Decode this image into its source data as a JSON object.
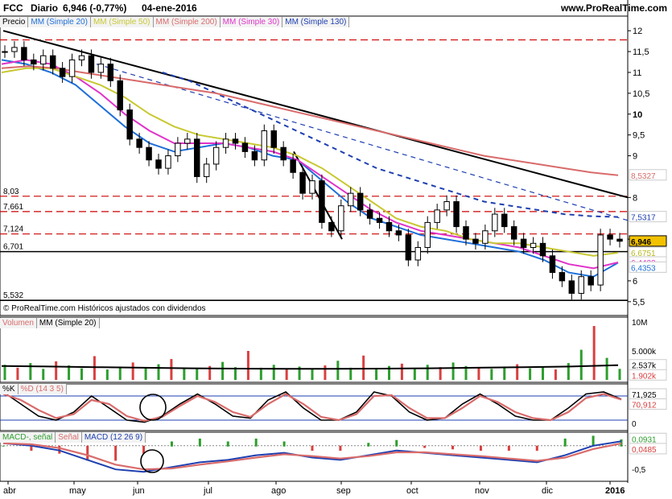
{
  "header": {
    "ticker": "FCC",
    "period": "Diario",
    "quote": "6,946 (-0,77%)",
    "date": "04-ene-2016",
    "site": "www.ProRealTime.com"
  },
  "price_legend": [
    {
      "label": "Precio",
      "color": "#000000"
    },
    {
      "label": "MM (Simple 20)",
      "color": "#1e6fd9"
    },
    {
      "label": "MM (Simple 50)",
      "color": "#c8c832"
    },
    {
      "label": "MM (Simple 200)",
      "color": "#d96b6b"
    },
    {
      "label": "MM (Simple 30)",
      "color": "#e033c9"
    },
    {
      "label": "MM (Simple 130)",
      "color": "#1e3fb0"
    }
  ],
  "copyright": "© ProRealTime.com  Históricos ajustados con dividendos",
  "volume_legend": [
    {
      "label": "Volumen",
      "color": "#d96b6b"
    },
    {
      "label": "MM (Simple 20)",
      "color": "#000000"
    }
  ],
  "stoch_legend": [
    {
      "label": "%K",
      "color": "#000000"
    },
    {
      "label": "%D (14 3 5)",
      "color": "#d96b6b"
    }
  ],
  "macd_legend": [
    {
      "label": "MACD-, señal",
      "color": "#2e9e2e"
    },
    {
      "label": "Señal",
      "color": "#d96b6b"
    },
    {
      "label": "MACD (12 26 9)",
      "color": "#1e3fb0"
    }
  ],
  "price_axis_ticks": [
    "12",
    "11,5",
    "11",
    "10,5",
    "10",
    "9,5",
    "9",
    "8",
    "7",
    "6",
    "5,5"
  ],
  "level_labels": [
    "8,03",
    "7,661",
    "7,124",
    "6,701",
    "5,532"
  ],
  "price_right_labels": [
    {
      "text": "8,5327",
      "color": "#d96b6b"
    },
    {
      "text": "7,5317",
      "color": "#1e3fb0"
    },
    {
      "text": "6,946",
      "color": "#000000"
    },
    {
      "text": "6,6751",
      "color": "#b8b820"
    },
    {
      "text": "6,4423",
      "color": "#e033c9"
    },
    {
      "text": "6,4353",
      "color": "#1e6fd9"
    }
  ],
  "volume_axis": [
    "10M",
    "5.000k",
    "2.537k",
    "1.902k"
  ],
  "stoch_axis": [
    "71,925",
    "70,912",
    "0"
  ],
  "macd_axis": [
    "0,0931",
    "0,0485",
    "-0,5"
  ],
  "x_labels": [
    "abr",
    "may",
    "jun",
    "jul",
    "ago",
    "sep",
    "oct",
    "nov",
    "dic",
    "2016"
  ],
  "colors": {
    "up": "#2e9e2e",
    "down": "#d94040",
    "ma20": "#1e6fd9",
    "ma50": "#c8c832",
    "ma200": "#d96b6b",
    "ma30": "#e033c9",
    "ma130": "#1e3fb0",
    "level": "#cc0000"
  },
  "chart_data": [
    {
      "type": "line",
      "title": "FCC Diario",
      "ylim": [
        5.4,
        12.1
      ],
      "x_ticks": [
        "abr",
        "may",
        "jun",
        "jul",
        "ago",
        "sep",
        "oct",
        "nov",
        "dic",
        "2016"
      ],
      "price_close": [
        11.5,
        11.6,
        11.3,
        11.2,
        11.4,
        11.1,
        10.9,
        11.3,
        11.4,
        11.0,
        11.2,
        10.8,
        10.1,
        9.4,
        9.2,
        8.9,
        8.7,
        9.0,
        9.3,
        9.4,
        8.5,
        8.8,
        9.2,
        9.4,
        9.3,
        9.1,
        8.9,
        9.6,
        9.2,
        8.9,
        8.6,
        8.1,
        8.4,
        7.4,
        7.2,
        7.8,
        8.1,
        7.7,
        7.5,
        7.4,
        7.2,
        7.1,
        6.5,
        6.8,
        7.4,
        7.7,
        7.9,
        7.3,
        7.0,
        6.9,
        7.2,
        7.6,
        7.3,
        7.0,
        6.8,
        6.9,
        6.6,
        6.2,
        6.0,
        5.7,
        6.1,
        5.9,
        7.1,
        7.0,
        6.95
      ],
      "horizontal_levels": [
        11.78,
        8.03,
        7.661,
        7.124,
        6.701,
        5.532
      ],
      "series": [
        {
          "name": "MM (Simple 20)",
          "values": [
            11.3,
            11.2,
            11.0,
            10.7,
            10.2,
            9.7,
            9.3,
            9.1,
            9.2,
            9.3,
            9.2,
            9.0,
            8.9,
            8.4,
            7.9,
            7.5,
            7.3,
            7.1,
            7.0,
            6.9,
            6.8,
            6.7,
            6.5,
            6.2,
            6.1,
            6.4353
          ]
        },
        {
          "name": "MM (Simple 30)",
          "values": [
            11.2,
            11.3,
            11.2,
            10.9,
            10.5,
            10.0,
            9.6,
            9.3,
            9.3,
            9.3,
            9.2,
            9.1,
            8.9,
            8.5,
            8.1,
            7.7,
            7.4,
            7.2,
            7.1,
            7.0,
            6.9,
            6.8,
            6.6,
            6.4,
            6.3,
            6.4423
          ]
        },
        {
          "name": "MM (Simple 50)",
          "values": [
            11.0,
            11.1,
            11.1,
            10.9,
            10.7,
            10.4,
            10.0,
            9.7,
            9.5,
            9.4,
            9.3,
            9.2,
            9.0,
            8.7,
            8.3,
            7.9,
            7.5,
            7.3,
            7.2,
            7.0,
            6.9,
            6.9,
            6.8,
            6.7,
            6.6,
            6.6751
          ]
        },
        {
          "name": "MM (Simple 130)",
          "values": [
            null,
            null,
            null,
            null,
            null,
            null,
            11.0,
            10.8,
            10.5,
            10.2,
            9.9,
            9.6,
            9.3,
            9.0,
            8.7,
            8.5,
            8.3,
            8.1,
            7.9,
            7.8,
            7.7,
            7.6,
            7.55,
            7.5317
          ]
        },
        {
          "name": "MM (Simple 200)",
          "values": [
            11.1,
            11.15,
            11.1,
            11.0,
            10.9,
            10.8,
            10.7,
            10.6,
            10.5,
            10.35,
            10.2,
            10.05,
            9.9,
            9.75,
            9.6,
            9.45,
            9.3,
            9.15,
            9.0,
            8.9,
            8.8,
            8.7,
            8.6,
            8.5327
          ]
        }
      ]
    },
    {
      "type": "bar",
      "title": "Volumen",
      "ylim": [
        0,
        10000
      ],
      "unit": "k",
      "values": [
        2600,
        2100,
        2900,
        1900,
        3200,
        2500,
        2000,
        4100,
        1800,
        2300,
        3000,
        2200,
        2700,
        3600,
        2000,
        1900,
        2400,
        3100,
        2200,
        5000,
        2100,
        2600,
        1800,
        2300,
        1900,
        2500,
        3300,
        2100,
        4200,
        2000,
        2400,
        2800,
        1900,
        2600,
        2200,
        3000,
        2400,
        2100,
        1900,
        2300,
        2700,
        2000,
        2200,
        1800,
        2900,
        5200,
        9300,
        3800,
        1902
      ],
      "series": [
        {
          "name": "MM (Simple 20)",
          "values": [
            2400,
            2300,
            2200,
            2100,
            2000,
            1950,
            1900,
            1900,
            1950,
            2000,
            2100,
            2200,
            2300,
            2537
          ]
        }
      ]
    },
    {
      "type": "line",
      "title": "%K %D (14 3 5)",
      "ylim": [
        0,
        100
      ],
      "series": [
        {
          "name": "%K",
          "values": [
            90,
            60,
            30,
            20,
            40,
            80,
            50,
            20,
            15,
            30,
            60,
            85,
            60,
            30,
            25,
            70,
            90,
            50,
            20,
            20,
            40,
            90,
            80,
            40,
            20,
            25,
            60,
            85,
            60,
            30,
            20,
            20,
            50,
            85,
            90,
            71.925
          ]
        },
        {
          "name": "%D",
          "values": [
            85,
            70,
            45,
            25,
            35,
            70,
            60,
            30,
            18,
            28,
            55,
            80,
            65,
            40,
            28,
            60,
            85,
            60,
            28,
            20,
            35,
            80,
            82,
            50,
            25,
            25,
            50,
            80,
            65,
            40,
            25,
            20,
            40,
            75,
            85,
            70.912
          ]
        }
      ]
    },
    {
      "type": "line",
      "title": "MACD (12 26 9)",
      "ylim": [
        -0.7,
        0.2
      ],
      "series": [
        {
          "name": "MACD",
          "values": [
            0.05,
            0.0,
            -0.1,
            -0.3,
            -0.5,
            -0.55,
            -0.45,
            -0.35,
            -0.3,
            -0.2,
            -0.15,
            -0.25,
            -0.3,
            -0.2,
            -0.1,
            -0.15,
            -0.2,
            -0.25,
            -0.3,
            -0.35,
            -0.2,
            0.0,
            0.0931
          ]
        },
        {
          "name": "Señal",
          "values": [
            0.05,
            0.03,
            -0.05,
            -0.2,
            -0.4,
            -0.5,
            -0.48,
            -0.4,
            -0.33,
            -0.25,
            -0.18,
            -0.22,
            -0.27,
            -0.22,
            -0.14,
            -0.14,
            -0.18,
            -0.22,
            -0.27,
            -0.32,
            -0.25,
            -0.07,
            0.0485
          ]
        }
      ]
    }
  ]
}
